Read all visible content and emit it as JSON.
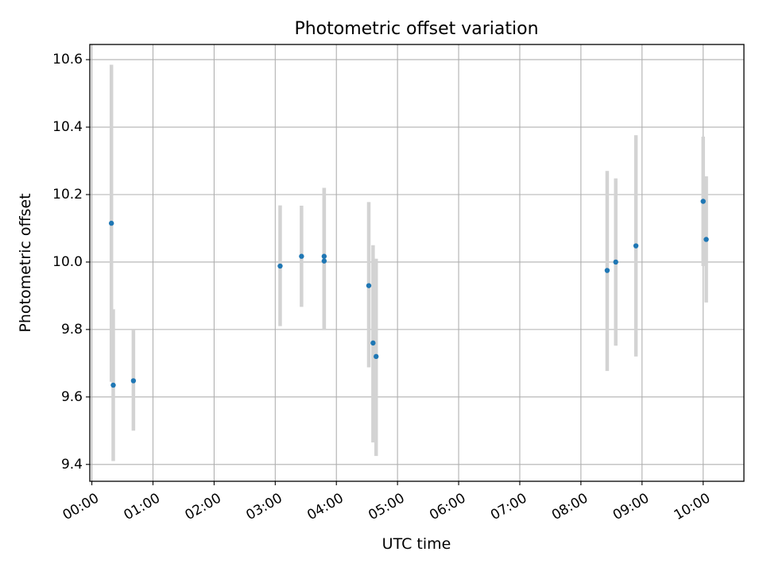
{
  "chart_data": {
    "type": "scatter",
    "title": "Photometric offset variation",
    "xlabel": "UTC time",
    "ylabel": "Photometric offset",
    "x_unit": "hours UTC",
    "xlim": [
      -0.0333,
      10.6667
    ],
    "ylim": [
      9.35,
      10.645
    ],
    "xticks": [
      {
        "value": 0,
        "label": "00:00"
      },
      {
        "value": 1,
        "label": "01:00"
      },
      {
        "value": 2,
        "label": "02:00"
      },
      {
        "value": 3,
        "label": "03:00"
      },
      {
        "value": 4,
        "label": "04:00"
      },
      {
        "value": 5,
        "label": "05:00"
      },
      {
        "value": 6,
        "label": "06:00"
      },
      {
        "value": 7,
        "label": "07:00"
      },
      {
        "value": 8,
        "label": "08:00"
      },
      {
        "value": 9,
        "label": "09:00"
      },
      {
        "value": 10,
        "label": "10:00"
      }
    ],
    "yticks": [
      {
        "value": 9.4,
        "label": "9.4"
      },
      {
        "value": 9.6,
        "label": "9.6"
      },
      {
        "value": 9.8,
        "label": "9.8"
      },
      {
        "value": 10.0,
        "label": "10.0"
      },
      {
        "value": 10.2,
        "label": "10.2"
      },
      {
        "value": 10.4,
        "label": "10.4"
      },
      {
        "value": 10.6,
        "label": "10.6"
      }
    ],
    "grid": true,
    "colors": {
      "marker": "#1f77b4",
      "errorbar": "#d3d3d3",
      "grid": "#b0b0b0"
    },
    "series": [
      {
        "points": [
          {
            "x": 0.32,
            "y": 10.115,
            "low": 9.645,
            "high": 10.585
          },
          {
            "x": 0.35,
            "y": 9.635,
            "low": 9.41,
            "high": 9.86
          },
          {
            "x": 0.68,
            "y": 9.648,
            "low": 9.5,
            "high": 9.8
          },
          {
            "x": 3.08,
            "y": 9.988,
            "low": 9.81,
            "high": 10.168
          },
          {
            "x": 3.43,
            "y": 10.017,
            "low": 9.867,
            "high": 10.167
          },
          {
            "x": 3.8,
            "y": 10.017,
            "low": 9.8,
            "high": 10.22
          },
          {
            "x": 3.8,
            "y": 10.003,
            "low": 9.8,
            "high": 10.22
          },
          {
            "x": 4.53,
            "y": 9.93,
            "low": 9.688,
            "high": 10.178
          },
          {
            "x": 4.6,
            "y": 9.76,
            "low": 9.465,
            "high": 10.05
          },
          {
            "x": 4.65,
            "y": 9.72,
            "low": 9.425,
            "high": 10.01
          },
          {
            "x": 8.43,
            "y": 9.975,
            "low": 9.677,
            "high": 10.27
          },
          {
            "x": 8.57,
            "y": 10.0,
            "low": 9.752,
            "high": 10.248
          },
          {
            "x": 8.9,
            "y": 10.048,
            "low": 9.72,
            "high": 10.376
          },
          {
            "x": 10.0,
            "y": 10.18,
            "low": 9.988,
            "high": 10.372
          },
          {
            "x": 10.05,
            "y": 10.067,
            "low": 9.88,
            "high": 10.254
          }
        ]
      }
    ]
  }
}
